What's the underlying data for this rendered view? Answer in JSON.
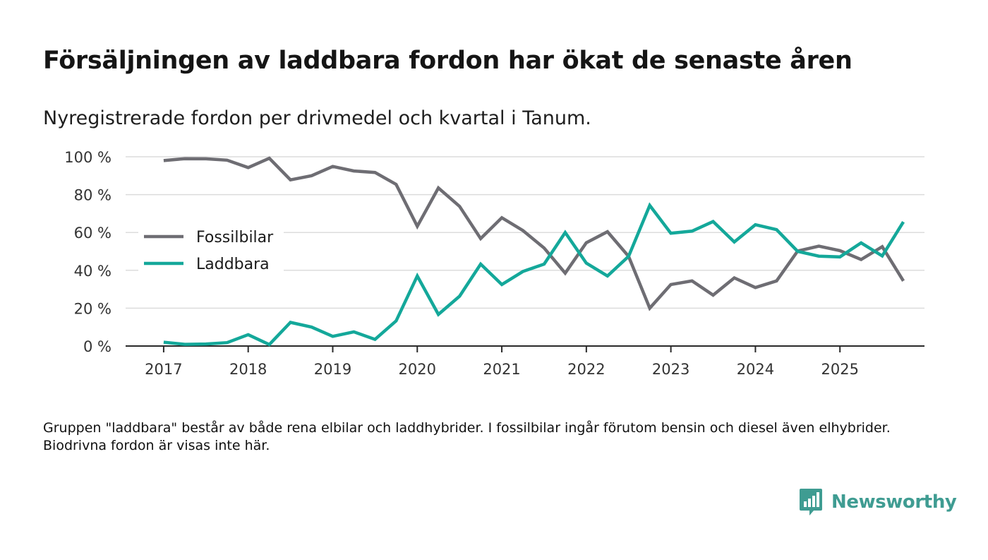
{
  "title": "Försäljningen av laddbara fordon har ökat de senaste åren",
  "subtitle": "Nyregistrerade fordon per drivmedel och kvartal i Tanum.",
  "note": "Gruppen \"laddbara\" består av både rena elbilar och laddhybrider. I fossilbilar ingår förutom bensin och diesel även elhybrider. Biodrivna fordon är visas inte här.",
  "brand": {
    "name": "Newsworthy",
    "icon": "newsworthy-logo-icon",
    "color": "#3f9c92"
  },
  "chart_data": {
    "type": "line",
    "x": [
      2017.0,
      2017.25,
      2017.5,
      2017.75,
      2018.0,
      2018.25,
      2018.5,
      2018.75,
      2019.0,
      2019.25,
      2019.5,
      2019.75,
      2020.0,
      2020.25,
      2020.5,
      2020.75,
      2021.0,
      2021.25,
      2021.5,
      2021.75,
      2022.0,
      2022.25,
      2022.5,
      2022.75,
      2023.0,
      2023.25,
      2023.5,
      2023.75,
      2024.0,
      2024.25,
      2024.5,
      2024.75,
      2025.0,
      2025.25,
      2025.5,
      2025.75
    ],
    "xlim": [
      2016.55,
      2026.0
    ],
    "xticks": [
      2017,
      2018,
      2019,
      2020,
      2021,
      2022,
      2023,
      2024,
      2025
    ],
    "xtick_labels": [
      "2017",
      "2018",
      "2019",
      "2020",
      "2021",
      "2022",
      "2023",
      "2024",
      "2025"
    ],
    "ylim": [
      0,
      100
    ],
    "yticks": [
      0,
      20,
      40,
      60,
      80,
      100
    ],
    "ytick_labels": [
      "0 %",
      "20 %",
      "40 %",
      "60 %",
      "80 %",
      "100 %"
    ],
    "grid": true,
    "legend_position": "middle-left",
    "series": [
      {
        "name": "Fossilbilar",
        "color": "#6e6d73",
        "values": [
          98.0,
          99.0,
          98.9,
          98.2,
          94.3,
          99.2,
          87.8,
          90.0,
          94.9,
          92.5,
          91.7,
          85.4,
          63.3,
          83.5,
          73.8,
          56.8,
          67.8,
          61.0,
          51.8,
          38.5,
          54.6,
          60.4,
          47.4,
          20.0,
          32.5,
          34.4,
          26.9,
          36.0,
          30.9,
          34.4,
          50.2,
          52.8,
          50.4,
          45.7,
          52.5,
          34.4
        ]
      },
      {
        "name": "Laddbara",
        "color": "#14a89a",
        "values": [
          2.0,
          0.9,
          1.1,
          1.8,
          6.0,
          0.8,
          12.5,
          10.0,
          5.1,
          7.5,
          3.5,
          13.3,
          37.0,
          16.7,
          26.3,
          43.3,
          32.5,
          39.4,
          43.3,
          60.0,
          43.8,
          37.0,
          47.4,
          74.3,
          59.6,
          60.7,
          65.8,
          55.0,
          64.1,
          61.5,
          50.0,
          47.5,
          47.1,
          54.5,
          47.6,
          65.6
        ]
      }
    ]
  }
}
